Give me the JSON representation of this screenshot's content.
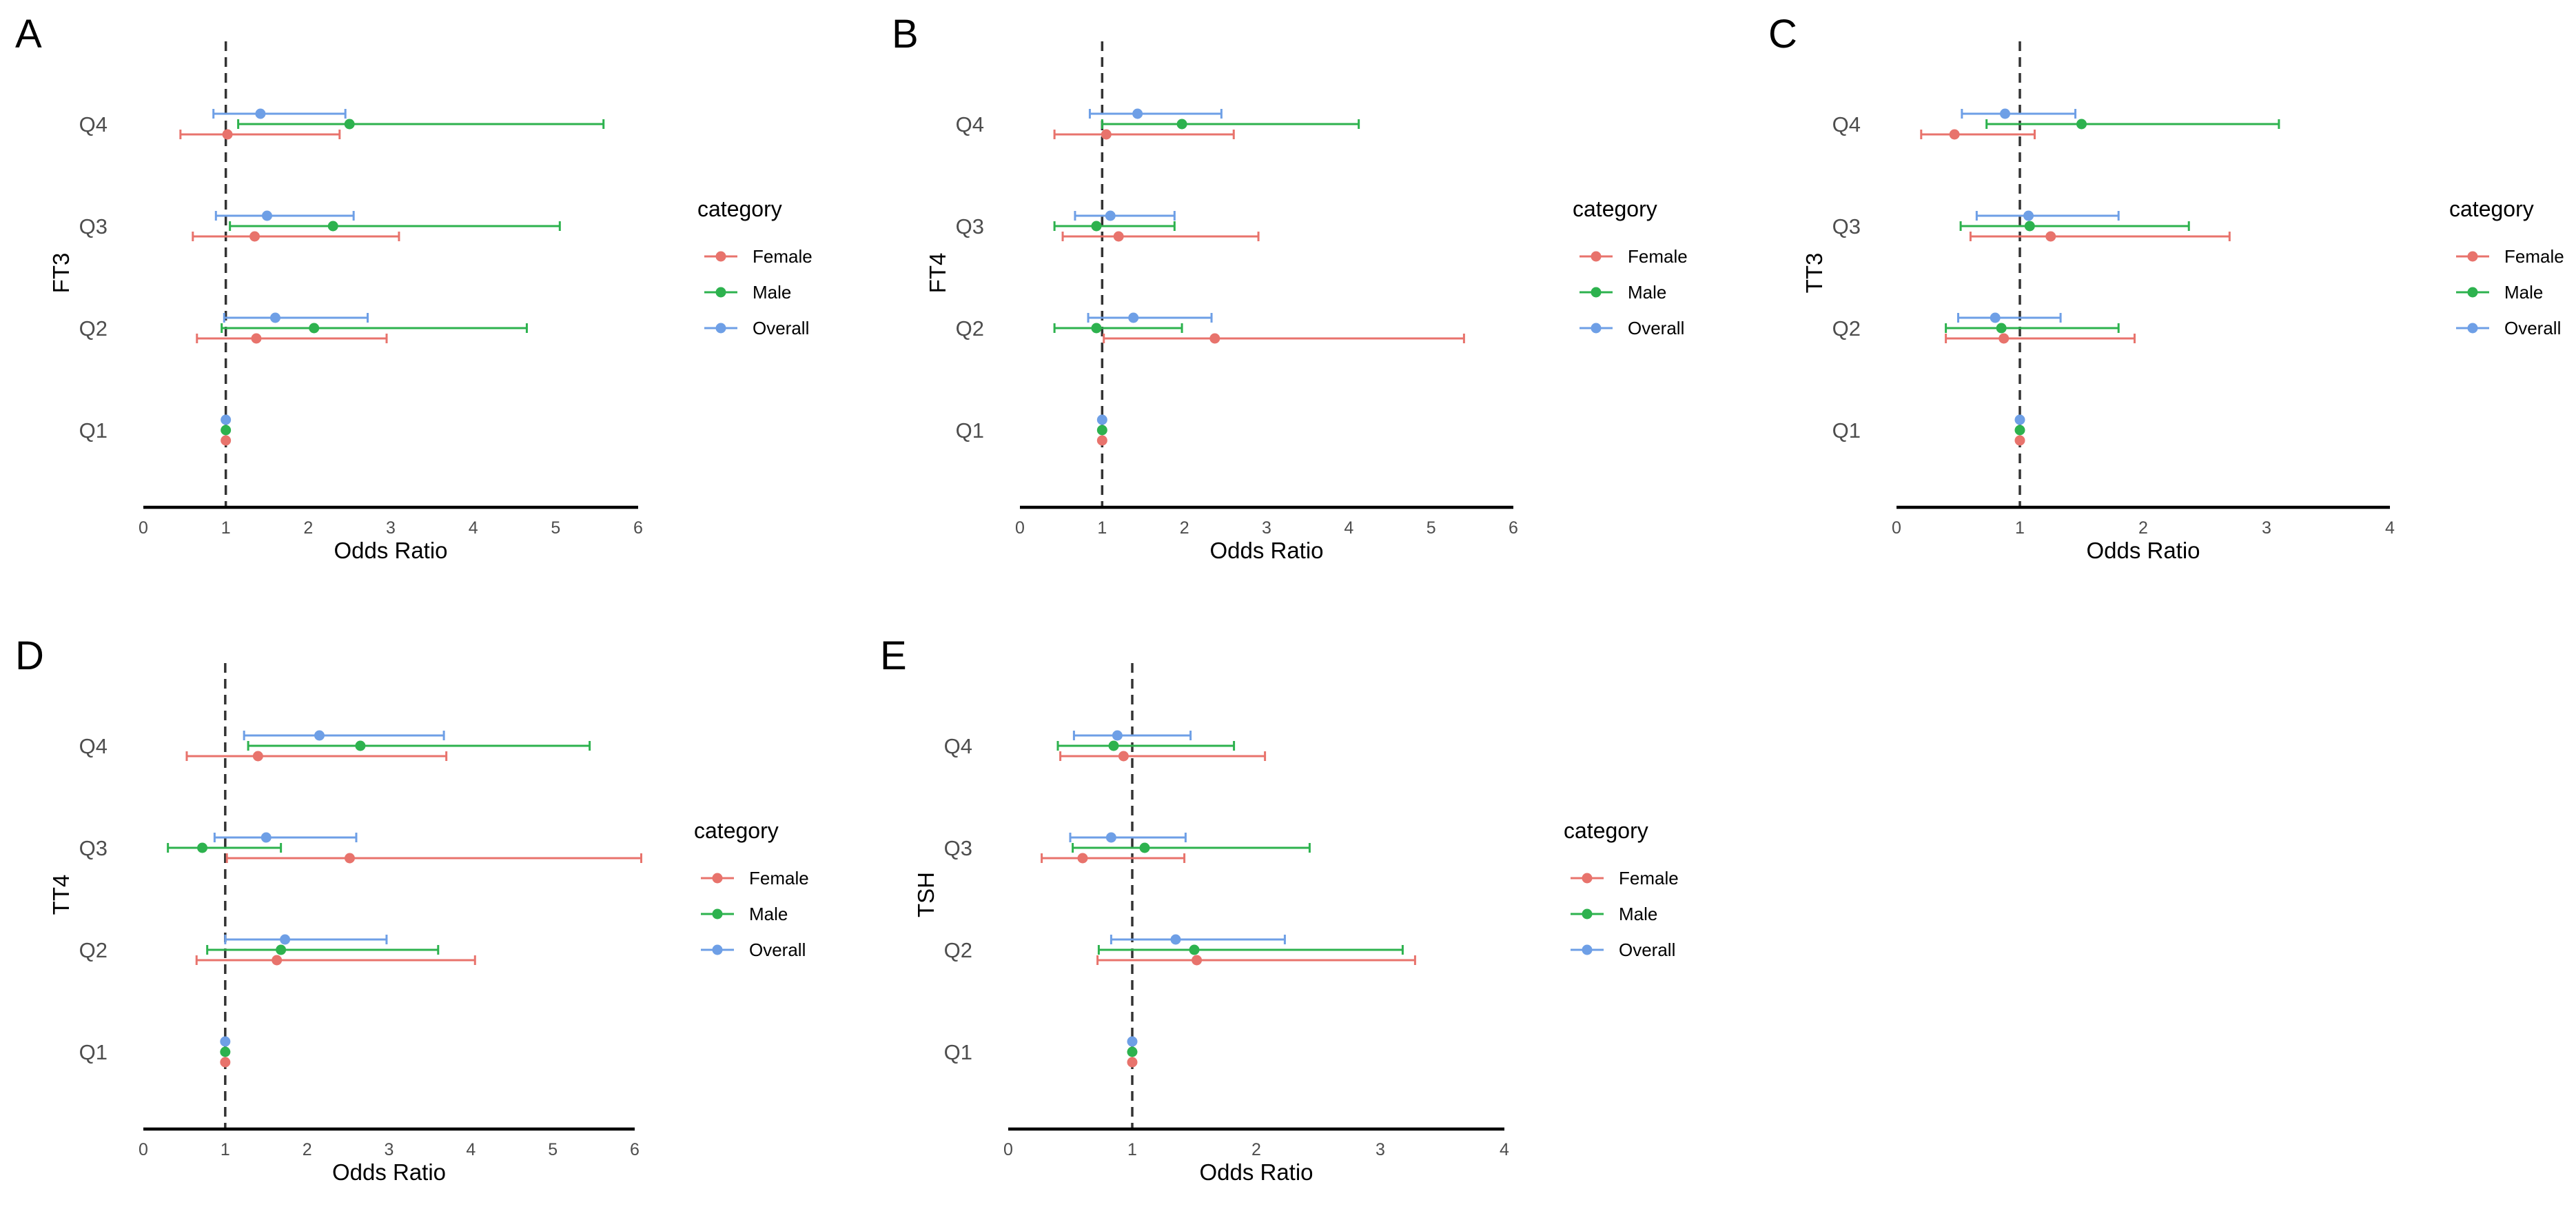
{
  "colors": {
    "female": "#E8736C",
    "male": "#2DB24E",
    "overall": "#6E9FE6",
    "axis": "#000000",
    "reference": "#333333",
    "text": "#4d4d4d"
  },
  "chart_data": [
    {
      "type": "forest",
      "panel": "A",
      "ylabel": "FT3",
      "xlabel": "Odds Ratio",
      "xlim": [
        0,
        6
      ],
      "xticks": [
        "0",
        "1",
        "2",
        "3",
        "4",
        "5",
        "6"
      ],
      "reference": 1,
      "categories": [
        "Q1",
        "Q2",
        "Q3",
        "Q4"
      ],
      "legend_title": "category",
      "legend": [
        "Female",
        "Male",
        "Overall"
      ],
      "series": [
        {
          "name": "Female",
          "or": [
            1,
            1.37,
            1.35,
            1.02
          ],
          "lo": [
            1,
            0.65,
            0.6,
            0.45
          ],
          "hi": [
            1,
            2.95,
            3.1,
            2.38
          ]
        },
        {
          "name": "Male",
          "or": [
            1,
            2.07,
            2.3,
            2.5
          ],
          "lo": [
            1,
            0.95,
            1.05,
            1.15
          ],
          "hi": [
            1,
            4.65,
            5.05,
            5.58
          ]
        },
        {
          "name": "Overall",
          "or": [
            1,
            1.6,
            1.5,
            1.42
          ],
          "lo": [
            1,
            0.98,
            0.88,
            0.85
          ],
          "hi": [
            1,
            2.72,
            2.55,
            2.45
          ]
        }
      ]
    },
    {
      "type": "forest",
      "panel": "B",
      "ylabel": "FT4",
      "xlabel": "Odds Ratio",
      "xlim": [
        0,
        6
      ],
      "xticks": [
        "0",
        "1",
        "2",
        "3",
        "4",
        "5",
        "6"
      ],
      "reference": 1,
      "categories": [
        "Q1",
        "Q2",
        "Q3",
        "Q4"
      ],
      "legend_title": "category",
      "legend": [
        "Female",
        "Male",
        "Overall"
      ],
      "series": [
        {
          "name": "Female",
          "or": [
            1,
            2.37,
            1.2,
            1.05
          ],
          "lo": [
            1,
            1.02,
            0.52,
            0.42
          ],
          "hi": [
            1,
            5.4,
            2.9,
            2.6
          ]
        },
        {
          "name": "Male",
          "or": [
            1,
            0.93,
            0.93,
            1.97
          ],
          "lo": [
            1,
            0.42,
            0.42,
            1.0
          ],
          "hi": [
            1,
            1.97,
            1.88,
            4.12
          ]
        },
        {
          "name": "Overall",
          "or": [
            1,
            1.38,
            1.1,
            1.43
          ],
          "lo": [
            1,
            0.83,
            0.67,
            0.85
          ],
          "hi": [
            1,
            2.33,
            1.88,
            2.45
          ]
        }
      ]
    },
    {
      "type": "forest",
      "panel": "C",
      "ylabel": "TT3",
      "xlabel": "Odds Ratio",
      "xlim": [
        0,
        4
      ],
      "xticks": [
        "0",
        "1",
        "2",
        "3",
        "4"
      ],
      "reference": 1,
      "categories": [
        "Q1",
        "Q2",
        "Q3",
        "Q4"
      ],
      "legend_title": "category",
      "legend": [
        "Female",
        "Male",
        "Overall"
      ],
      "series": [
        {
          "name": "Female",
          "or": [
            1,
            0.87,
            1.25,
            0.47
          ],
          "lo": [
            1,
            0.4,
            0.6,
            0.2
          ],
          "hi": [
            1,
            1.93,
            2.7,
            1.12
          ]
        },
        {
          "name": "Male",
          "or": [
            1,
            0.85,
            1.08,
            1.5
          ],
          "lo": [
            1,
            0.4,
            0.52,
            0.73
          ],
          "hi": [
            1,
            1.8,
            2.37,
            3.1
          ]
        },
        {
          "name": "Overall",
          "or": [
            1,
            0.8,
            1.07,
            0.88
          ],
          "lo": [
            1,
            0.5,
            0.65,
            0.53
          ],
          "hi": [
            1,
            1.33,
            1.8,
            1.45
          ]
        }
      ]
    },
    {
      "type": "forest",
      "panel": "D",
      "ylabel": "TT4",
      "xlabel": "Odds Ratio",
      "xlim": [
        0,
        6
      ],
      "xticks": [
        "0",
        "1",
        "2",
        "3",
        "4",
        "5",
        "6"
      ],
      "reference": 1,
      "categories": [
        "Q1",
        "Q2",
        "Q3",
        "Q4"
      ],
      "legend_title": "category",
      "legend": [
        "Female",
        "Male",
        "Overall"
      ],
      "series": [
        {
          "name": "Female",
          "or": [
            1,
            1.63,
            2.52,
            1.4
          ],
          "lo": [
            1,
            0.65,
            1.02,
            0.53
          ],
          "hi": [
            1,
            4.05,
            6.08,
            3.7
          ]
        },
        {
          "name": "Male",
          "or": [
            1,
            1.68,
            0.72,
            2.65
          ],
          "lo": [
            1,
            0.78,
            0.3,
            1.28
          ],
          "hi": [
            1,
            3.6,
            1.68,
            5.45
          ]
        },
        {
          "name": "Overall",
          "or": [
            1,
            1.73,
            1.5,
            2.15
          ],
          "lo": [
            1,
            1.0,
            0.87,
            1.23
          ],
          "hi": [
            1,
            2.97,
            2.6,
            3.67
          ]
        }
      ]
    },
    {
      "type": "forest",
      "panel": "E",
      "ylabel": "TSH",
      "xlabel": "Odds Ratio",
      "xlim": [
        0,
        4
      ],
      "xticks": [
        "0",
        "1",
        "2",
        "3",
        "4"
      ],
      "reference": 1,
      "categories": [
        "Q1",
        "Q2",
        "Q3",
        "Q4"
      ],
      "legend_title": "category",
      "legend": [
        "Female",
        "Male",
        "Overall"
      ],
      "series": [
        {
          "name": "Female",
          "or": [
            1,
            1.52,
            0.6,
            0.93
          ],
          "lo": [
            1,
            0.72,
            0.27,
            0.42
          ],
          "hi": [
            1,
            3.28,
            1.42,
            2.07
          ]
        },
        {
          "name": "Male",
          "or": [
            1,
            1.5,
            1.1,
            0.85
          ],
          "lo": [
            1,
            0.73,
            0.52,
            0.4
          ],
          "hi": [
            1,
            3.18,
            2.43,
            1.82
          ]
        },
        {
          "name": "Overall",
          "or": [
            1,
            1.35,
            0.83,
            0.88
          ],
          "lo": [
            1,
            0.83,
            0.5,
            0.53
          ],
          "hi": [
            1,
            2.23,
            1.43,
            1.47
          ]
        }
      ]
    }
  ]
}
